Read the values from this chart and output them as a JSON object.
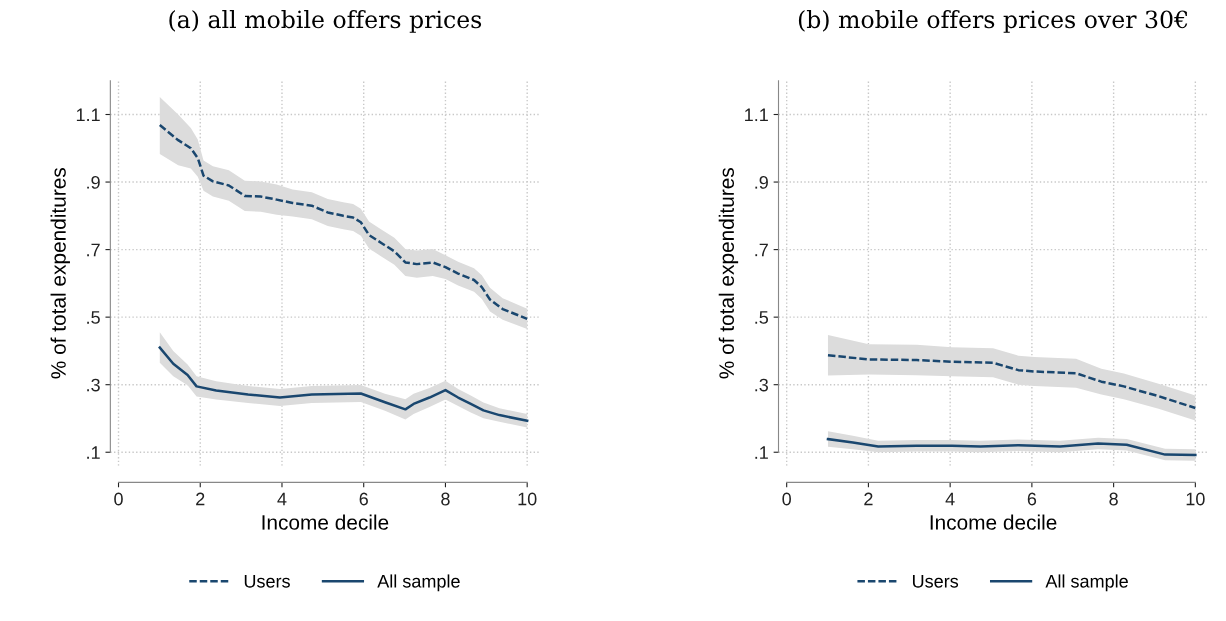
{
  "chart_data": [
    {
      "type": "line",
      "title": "(a) all mobile offers prices",
      "xlabel": "Income decile",
      "ylabel": "% of total expenditures",
      "xlim": [
        -0.2,
        10.3
      ],
      "xticks": [
        0,
        2,
        4,
        6,
        8,
        10
      ],
      "ylim": [
        0.06,
        1.2
      ],
      "yticks": [
        {
          "value": 0.1,
          "label": ".1"
        },
        {
          "value": 0.3,
          "label": ".3"
        },
        {
          "value": 0.5,
          "label": ".5"
        },
        {
          "value": 0.7,
          "label": ".7"
        },
        {
          "value": 0.9,
          "label": ".9"
        },
        {
          "value": 1.1,
          "label": "1.1"
        }
      ],
      "grid": true,
      "legend": "bottom",
      "series": [
        {
          "name": "Users",
          "color": "#1a476f",
          "line_style": "dashed",
          "x": [
            1.01,
            1.46,
            1.77,
            1.94,
            2.08,
            2.31,
            2.7,
            3.09,
            3.48,
            3.87,
            4.26,
            4.73,
            5.12,
            5.5,
            5.74,
            5.93,
            6.13,
            6.44,
            6.75,
            7.02,
            7.3,
            7.69,
            8.0,
            8.31,
            8.7,
            8.89,
            9.09,
            9.4,
            10
          ],
          "values": [
            1.069,
            1.024,
            1.0,
            0.971,
            0.919,
            0.902,
            0.89,
            0.859,
            0.857,
            0.848,
            0.838,
            0.83,
            0.81,
            0.8,
            0.795,
            0.781,
            0.743,
            0.719,
            0.695,
            0.662,
            0.657,
            0.662,
            0.648,
            0.629,
            0.61,
            0.589,
            0.552,
            0.524,
            0.495
          ],
          "upper": [
            1.152,
            1.1,
            1.06,
            1.026,
            0.964,
            0.947,
            0.935,
            0.904,
            0.902,
            0.893,
            0.878,
            0.87,
            0.85,
            0.84,
            0.835,
            0.821,
            0.783,
            0.759,
            0.735,
            0.702,
            0.697,
            0.702,
            0.683,
            0.664,
            0.645,
            0.624,
            0.587,
            0.556,
            0.525
          ],
          "lower": [
            0.983,
            0.95,
            0.94,
            0.916,
            0.874,
            0.857,
            0.845,
            0.814,
            0.812,
            0.803,
            0.798,
            0.79,
            0.77,
            0.76,
            0.755,
            0.741,
            0.703,
            0.679,
            0.655,
            0.622,
            0.617,
            0.622,
            0.613,
            0.594,
            0.575,
            0.554,
            0.517,
            0.492,
            0.465
          ]
        },
        {
          "name": "All sample",
          "color": "#1a476f",
          "line_style": "solid",
          "x": [
            1.01,
            1.34,
            1.69,
            1.91,
            2.39,
            3.17,
            3.95,
            4.73,
            5.93,
            6.52,
            7.02,
            7.22,
            7.61,
            8.0,
            8.31,
            8.62,
            8.93,
            9.32,
            10
          ],
          "values": [
            0.41,
            0.362,
            0.329,
            0.295,
            0.283,
            0.271,
            0.262,
            0.271,
            0.274,
            0.248,
            0.227,
            0.243,
            0.262,
            0.284,
            0.262,
            0.243,
            0.224,
            0.21,
            0.193
          ],
          "upper": [
            0.455,
            0.4,
            0.36,
            0.325,
            0.31,
            0.296,
            0.287,
            0.296,
            0.299,
            0.273,
            0.257,
            0.273,
            0.29,
            0.312,
            0.287,
            0.268,
            0.247,
            0.23,
            0.213
          ],
          "lower": [
            0.365,
            0.325,
            0.298,
            0.265,
            0.256,
            0.246,
            0.237,
            0.246,
            0.249,
            0.223,
            0.197,
            0.213,
            0.234,
            0.256,
            0.237,
            0.218,
            0.201,
            0.19,
            0.173
          ]
        }
      ]
    },
    {
      "type": "line",
      "title": "(b) mobile offers prices over 30€",
      "xlabel": "Income decile",
      "ylabel": "% of total expenditures",
      "xlim": [
        -0.2,
        10.3
      ],
      "xticks": [
        0,
        2,
        4,
        6,
        8,
        10
      ],
      "ylim": [
        0.06,
        1.2
      ],
      "yticks": [
        {
          "value": 0.1,
          "label": ".1"
        },
        {
          "value": 0.3,
          "label": ".3"
        },
        {
          "value": 0.5,
          "label": ".5"
        },
        {
          "value": 0.7,
          "label": ".7"
        },
        {
          "value": 0.9,
          "label": ".9"
        },
        {
          "value": 1.1,
          "label": "1.1"
        }
      ],
      "grid": true,
      "legend": "bottom",
      "series": [
        {
          "name": "Users",
          "color": "#1a476f",
          "line_style": "dashed",
          "x": [
            1.01,
            2.01,
            3.18,
            4.04,
            5.05,
            5.67,
            6.06,
            7.08,
            7.7,
            8.25,
            9.1,
            10
          ],
          "values": [
            0.387,
            0.375,
            0.373,
            0.368,
            0.365,
            0.343,
            0.339,
            0.334,
            0.309,
            0.295,
            0.266,
            0.231
          ],
          "upper": [
            0.447,
            0.42,
            0.418,
            0.411,
            0.408,
            0.386,
            0.382,
            0.377,
            0.347,
            0.333,
            0.303,
            0.268
          ],
          "lower": [
            0.327,
            0.33,
            0.328,
            0.325,
            0.322,
            0.3,
            0.296,
            0.291,
            0.271,
            0.257,
            0.229,
            0.194
          ]
        },
        {
          "name": "All sample",
          "color": "#1a476f",
          "line_style": "solid",
          "x": [
            1.01,
            1.62,
            2.24,
            3.18,
            4.04,
            4.74,
            5.67,
            6.69,
            7.62,
            8.32,
            9.26,
            10
          ],
          "values": [
            0.139,
            0.129,
            0.117,
            0.119,
            0.119,
            0.117,
            0.121,
            0.117,
            0.126,
            0.122,
            0.093,
            0.092
          ],
          "upper": [
            0.162,
            0.149,
            0.134,
            0.136,
            0.136,
            0.134,
            0.138,
            0.134,
            0.143,
            0.139,
            0.11,
            0.109
          ],
          "lower": [
            0.116,
            0.109,
            0.1,
            0.102,
            0.102,
            0.1,
            0.104,
            0.1,
            0.109,
            0.105,
            0.076,
            0.075
          ]
        }
      ]
    }
  ]
}
